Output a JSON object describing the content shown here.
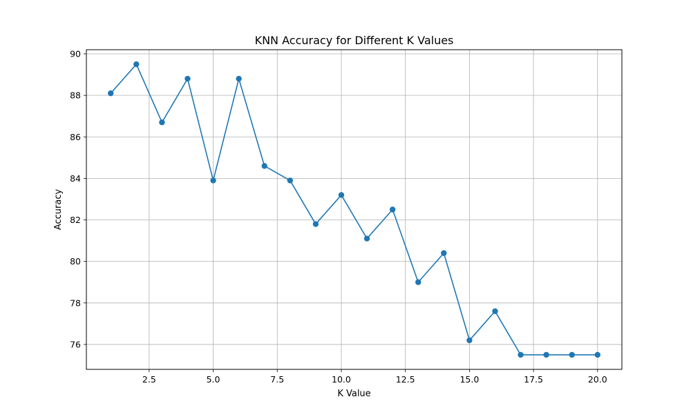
{
  "chart_data": {
    "type": "line",
    "title": "KNN Accuracy for Different K Values",
    "xlabel": "K Value",
    "ylabel": "Accuracy",
    "x": [
      1,
      2,
      3,
      4,
      5,
      6,
      7,
      8,
      9,
      10,
      11,
      12,
      13,
      14,
      15,
      16,
      17,
      18,
      19,
      20
    ],
    "series": [
      {
        "values": [
          88.1,
          89.5,
          86.7,
          88.8,
          83.9,
          88.8,
          84.6,
          83.9,
          81.8,
          83.2,
          81.1,
          82.5,
          79.0,
          80.4,
          76.2,
          77.6,
          75.5,
          75.5,
          75.5,
          75.5
        ],
        "color": "#1f77b4",
        "marker": "circle"
      }
    ],
    "xlim": [
      0.05,
      20.95
    ],
    "ylim": [
      74.8,
      90.2
    ],
    "xticks": [
      2.5,
      5.0,
      7.5,
      10.0,
      12.5,
      15.0,
      17.5,
      20.0
    ],
    "xtick_labels": [
      "2.5",
      "5.0",
      "7.5",
      "10.0",
      "12.5",
      "15.0",
      "17.5",
      "20.0"
    ],
    "yticks": [
      76,
      78,
      80,
      82,
      84,
      86,
      88,
      90
    ],
    "ytick_labels": [
      "76",
      "78",
      "80",
      "82",
      "84",
      "86",
      "88",
      "90"
    ],
    "grid": true,
    "legend": "none"
  }
}
